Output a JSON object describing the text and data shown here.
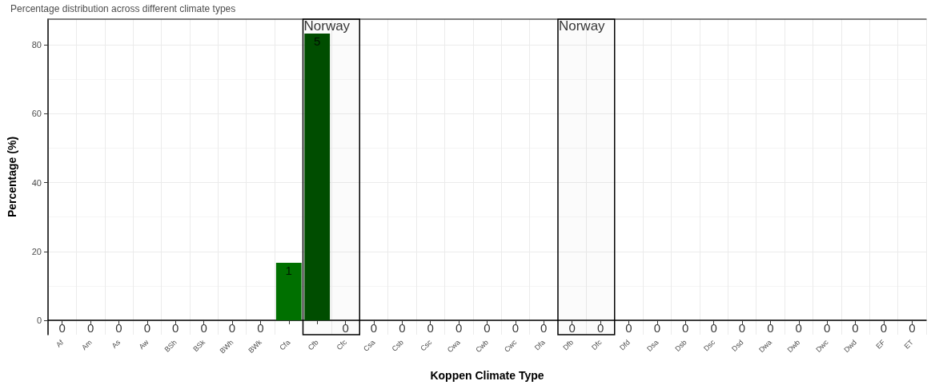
{
  "chart_data": {
    "type": "bar",
    "title": "Percentage distribution across different climate types",
    "xlabel": "Koppen Climate Type",
    "ylabel": "Percentage (%)",
    "categories": [
      "Af",
      "Am",
      "As",
      "Aw",
      "BSh",
      "BSk",
      "BWh",
      "BWk",
      "Cfa",
      "Cfb",
      "Cfc",
      "Csa",
      "Csb",
      "Csc",
      "Cwa",
      "Cwb",
      "Cwc",
      "Dfa",
      "Dfb",
      "Dfc",
      "Dfd",
      "Dsa",
      "Dsb",
      "Dsc",
      "Dsd",
      "Dwa",
      "Dwb",
      "Dwc",
      "Dwd",
      "EF",
      "ET"
    ],
    "values": [
      0,
      0,
      0,
      0,
      0,
      0,
      0,
      0,
      16.7,
      83.3,
      0,
      0,
      0,
      0,
      0,
      0,
      0,
      0,
      0,
      0,
      0,
      0,
      0,
      0,
      0,
      0,
      0,
      0,
      0,
      0,
      0
    ],
    "colors": [
      "#007000",
      "#007000",
      "#007000",
      "#007000",
      "#007000",
      "#007000",
      "#007000",
      "#007000",
      "#007000",
      "#004d00",
      "#007000",
      "#007000",
      "#007000",
      "#007000",
      "#007000",
      "#007000",
      "#007000",
      "#007000",
      "#007000",
      "#007000",
      "#007000",
      "#007000",
      "#007000",
      "#007000",
      "#007000",
      "#007000",
      "#007000",
      "#007000",
      "#007000",
      "#007000",
      "#007000"
    ],
    "ylim": [
      -4.2,
      87.5
    ],
    "yticks": [
      0,
      20,
      40,
      60,
      80
    ],
    "grid": true,
    "annotations": [
      {
        "text": "0",
        "x": "Af",
        "y": 0
      },
      {
        "text": "0",
        "x": "Am",
        "y": 0
      },
      {
        "text": "0",
        "x": "As",
        "y": 0
      },
      {
        "text": "0",
        "x": "Aw",
        "y": 0
      },
      {
        "text": "0",
        "x": "BSh",
        "y": 0
      },
      {
        "text": "0",
        "x": "BSk",
        "y": 0
      },
      {
        "text": "0",
        "x": "BWh",
        "y": 0
      },
      {
        "text": "0",
        "x": "BWk",
        "y": 0
      },
      {
        "text": "1",
        "x": "Cfa",
        "y": 16.7
      },
      {
        "text": "5",
        "x": "Cfb",
        "y": 83.3
      },
      {
        "text": "0",
        "x": "Cfc",
        "y": 0
      },
      {
        "text": "0",
        "x": "Csa",
        "y": 0
      },
      {
        "text": "0",
        "x": "Csb",
        "y": 0
      },
      {
        "text": "0",
        "x": "Csc",
        "y": 0
      },
      {
        "text": "0",
        "x": "Cwa",
        "y": 0
      },
      {
        "text": "0",
        "x": "Cwb",
        "y": 0
      },
      {
        "text": "0",
        "x": "Cwc",
        "y": 0
      },
      {
        "text": "0",
        "x": "Dfa",
        "y": 0
      },
      {
        "text": "0",
        "x": "Dfb",
        "y": 0
      },
      {
        "text": "0",
        "x": "Dfc",
        "y": 0
      },
      {
        "text": "0",
        "x": "Dfd",
        "y": 0
      },
      {
        "text": "0",
        "x": "Dsa",
        "y": 0
      },
      {
        "text": "0",
        "x": "Dsb",
        "y": 0
      },
      {
        "text": "0",
        "x": "Dsc",
        "y": 0
      },
      {
        "text": "0",
        "x": "Dsd",
        "y": 0
      },
      {
        "text": "0",
        "x": "Dwa",
        "y": 0
      },
      {
        "text": "0",
        "x": "Dwb",
        "y": 0
      },
      {
        "text": "0",
        "x": "Dwc",
        "y": 0
      },
      {
        "text": "0",
        "x": "Dwd",
        "y": 0
      },
      {
        "text": "0",
        "x": "EF",
        "y": 0
      },
      {
        "text": "0",
        "x": "ET",
        "y": 0
      }
    ],
    "bands": [
      {
        "axis": "x",
        "from": "Cfb",
        "to": "Cfc",
        "label": "Norway",
        "color": "#000000"
      },
      {
        "axis": "x",
        "from": "Dfb",
        "to": "Dfc",
        "label": "Norway",
        "color": "#000000"
      }
    ]
  }
}
